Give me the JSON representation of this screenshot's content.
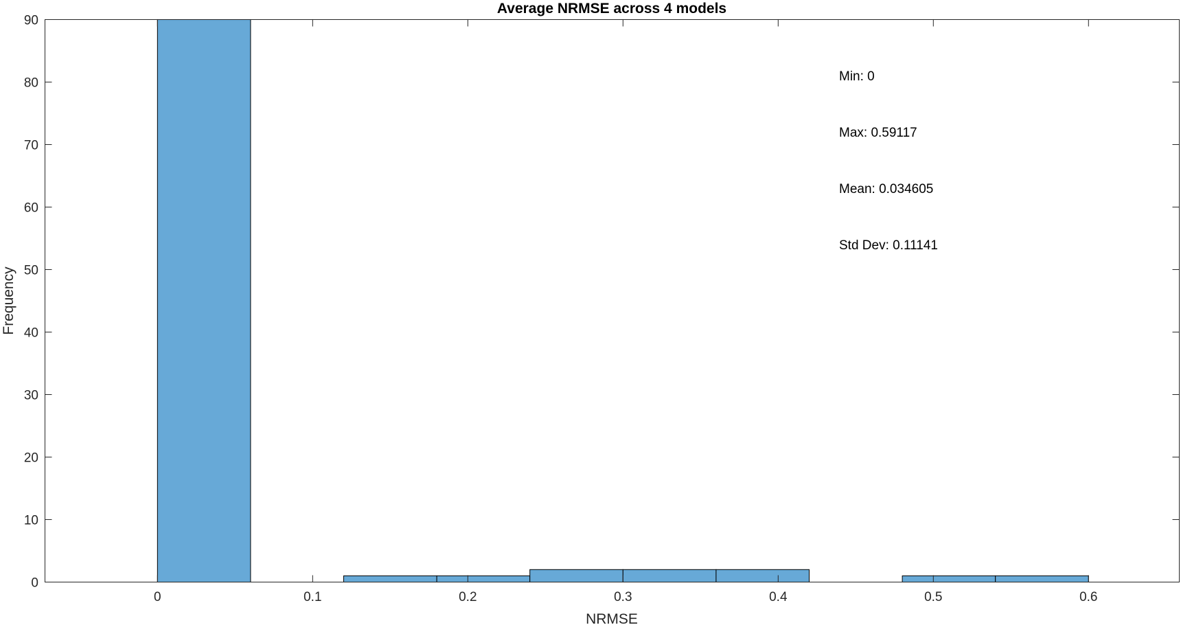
{
  "chart_data": {
    "type": "bar",
    "title": "Average NRMSE across 4 models",
    "xlabel": "NRMSE",
    "ylabel": "Frequency",
    "xlim": [
      -0.0725,
      0.6585
    ],
    "ylim": [
      0,
      90
    ],
    "xticks": [
      0,
      0.1,
      0.2,
      0.3,
      0.4,
      0.5,
      0.6
    ],
    "xtick_labels": [
      "0",
      "0.1",
      "0.2",
      "0.3",
      "0.4",
      "0.5",
      "0.6"
    ],
    "yticks": [
      0,
      10,
      20,
      30,
      40,
      50,
      60,
      70,
      80,
      90
    ],
    "ytick_labels": [
      "0",
      "10",
      "20",
      "30",
      "40",
      "50",
      "60",
      "70",
      "80",
      "90"
    ],
    "bin_edges": [
      0,
      0.06,
      0.12,
      0.18,
      0.24,
      0.3,
      0.36,
      0.42,
      0.48,
      0.54,
      0.6
    ],
    "counts": [
      90,
      0,
      1,
      1,
      2,
      2,
      2,
      0,
      1,
      1
    ],
    "bar_color": "#67a9d7",
    "edge_color": "#000000",
    "grid": false,
    "annotations": [
      "Min: 0",
      "Max: 0.59117",
      "Mean: 0.034605",
      "Std Dev: 0.11141"
    ]
  }
}
